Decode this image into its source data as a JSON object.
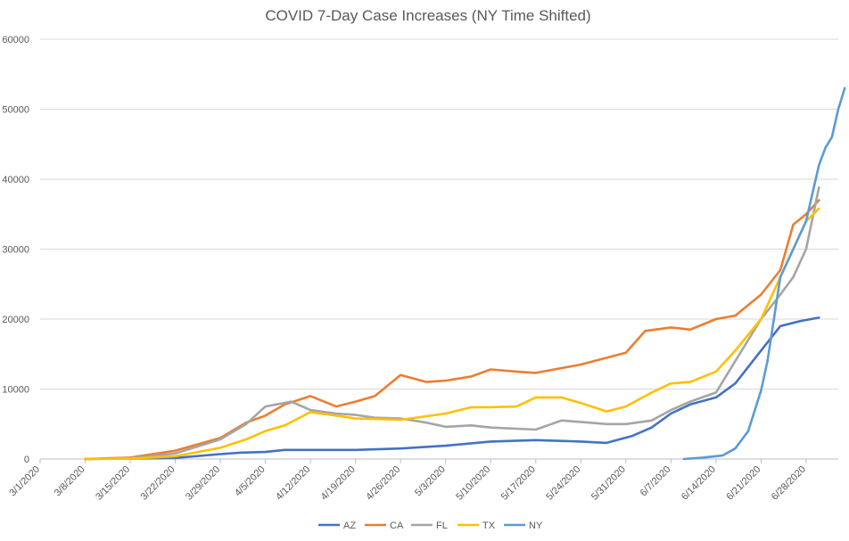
{
  "chart_data": {
    "type": "line",
    "title": "COVID 7-Day Case Increases (NY Time Shifted)",
    "xlabel": "",
    "ylabel": "",
    "ylim": [
      0,
      60000
    ],
    "yticks": [
      0,
      10000,
      20000,
      30000,
      40000,
      50000,
      60000
    ],
    "xlim": [
      "3/1/2020",
      "7/3/2020"
    ],
    "xticks": [
      "3/1/2020",
      "3/8/2020",
      "3/15/2020",
      "3/22/2020",
      "3/29/2020",
      "4/5/2020",
      "4/12/2020",
      "4/19/2020",
      "4/26/2020",
      "5/3/2020",
      "5/10/2020",
      "5/17/2020",
      "5/24/2020",
      "5/31/2020",
      "6/7/2020",
      "6/14/2020",
      "6/21/2020",
      "6/28/2020"
    ],
    "grid": true,
    "legend_position": "bottom",
    "series": [
      {
        "name": "AZ",
        "color": "#4472C4",
        "points": [
          [
            "3/8/2020",
            0
          ],
          [
            "3/15/2020",
            50
          ],
          [
            "3/22/2020",
            150
          ],
          [
            "3/29/2020",
            700
          ],
          [
            "4/1/2020",
            900
          ],
          [
            "4/5/2020",
            1000
          ],
          [
            "4/8/2020",
            1300
          ],
          [
            "4/12/2020",
            1300
          ],
          [
            "4/19/2020",
            1300
          ],
          [
            "4/26/2020",
            1500
          ],
          [
            "5/3/2020",
            1900
          ],
          [
            "5/10/2020",
            2500
          ],
          [
            "5/17/2020",
            2700
          ],
          [
            "5/24/2020",
            2500
          ],
          [
            "5/28/2020",
            2300
          ],
          [
            "6/1/2020",
            3300
          ],
          [
            "6/4/2020",
            4500
          ],
          [
            "6/7/2020",
            6500
          ],
          [
            "6/10/2020",
            7800
          ],
          [
            "6/14/2020",
            8800
          ],
          [
            "6/17/2020",
            10800
          ],
          [
            "6/21/2020",
            15500
          ],
          [
            "6/24/2020",
            19000
          ],
          [
            "6/27/2020",
            19700
          ],
          [
            "6/30/2020",
            20200
          ]
        ]
      },
      {
        "name": "CA",
        "color": "#ED7D31",
        "points": [
          [
            "3/8/2020",
            0
          ],
          [
            "3/15/2020",
            200
          ],
          [
            "3/22/2020",
            1200
          ],
          [
            "3/29/2020",
            3000
          ],
          [
            "4/2/2020",
            5200
          ],
          [
            "4/5/2020",
            6200
          ],
          [
            "4/8/2020",
            7800
          ],
          [
            "4/12/2020",
            9000
          ],
          [
            "4/16/2020",
            7500
          ],
          [
            "4/19/2020",
            8200
          ],
          [
            "4/22/2020",
            9000
          ],
          [
            "4/26/2020",
            12000
          ],
          [
            "4/30/2020",
            11000
          ],
          [
            "5/3/2020",
            11200
          ],
          [
            "5/7/2020",
            11800
          ],
          [
            "5/10/2020",
            12800
          ],
          [
            "5/14/2020",
            12500
          ],
          [
            "5/17/2020",
            12300
          ],
          [
            "5/24/2020",
            13500
          ],
          [
            "5/31/2020",
            15200
          ],
          [
            "6/3/2020",
            18300
          ],
          [
            "6/7/2020",
            18800
          ],
          [
            "6/10/2020",
            18500
          ],
          [
            "6/14/2020",
            20000
          ],
          [
            "6/17/2020",
            20500
          ],
          [
            "6/21/2020",
            23500
          ],
          [
            "6/24/2020",
            27000
          ],
          [
            "6/26/2020",
            33500
          ],
          [
            "6/28/2020",
            35000
          ],
          [
            "6/30/2020",
            37000
          ]
        ]
      },
      {
        "name": "FL",
        "color": "#A5A5A5",
        "points": [
          [
            "3/8/2020",
            0
          ],
          [
            "3/15/2020",
            100
          ],
          [
            "3/22/2020",
            800
          ],
          [
            "3/29/2020",
            2800
          ],
          [
            "4/2/2020",
            5000
          ],
          [
            "4/5/2020",
            7500
          ],
          [
            "4/9/2020",
            8200
          ],
          [
            "4/12/2020",
            7000
          ],
          [
            "4/16/2020",
            6500
          ],
          [
            "4/19/2020",
            6300
          ],
          [
            "4/22/2020",
            5900
          ],
          [
            "4/26/2020",
            5800
          ],
          [
            "4/30/2020",
            5200
          ],
          [
            "5/3/2020",
            4600
          ],
          [
            "5/7/2020",
            4800
          ],
          [
            "5/10/2020",
            4500
          ],
          [
            "5/17/2020",
            4200
          ],
          [
            "5/21/2020",
            5500
          ],
          [
            "5/24/2020",
            5300
          ],
          [
            "5/28/2020",
            5000
          ],
          [
            "5/31/2020",
            5000
          ],
          [
            "6/4/2020",
            5500
          ],
          [
            "6/7/2020",
            7000
          ],
          [
            "6/10/2020",
            8200
          ],
          [
            "6/14/2020",
            9500
          ],
          [
            "6/17/2020",
            14000
          ],
          [
            "6/21/2020",
            20000
          ],
          [
            "6/24/2020",
            23500
          ],
          [
            "6/26/2020",
            26000
          ],
          [
            "6/28/2020",
            30000
          ],
          [
            "6/30/2020",
            38800
          ]
        ]
      },
      {
        "name": "TX",
        "color": "#FFC000",
        "points": [
          [
            "3/8/2020",
            0
          ],
          [
            "3/15/2020",
            50
          ],
          [
            "3/22/2020",
            400
          ],
          [
            "3/29/2020",
            1600
          ],
          [
            "4/2/2020",
            2800
          ],
          [
            "4/5/2020",
            4000
          ],
          [
            "4/8/2020",
            4800
          ],
          [
            "4/12/2020",
            6700
          ],
          [
            "4/16/2020",
            6200
          ],
          [
            "4/19/2020",
            5800
          ],
          [
            "4/26/2020",
            5600
          ],
          [
            "5/3/2020",
            6500
          ],
          [
            "5/7/2020",
            7400
          ],
          [
            "5/10/2020",
            7400
          ],
          [
            "5/14/2020",
            7500
          ],
          [
            "5/17/2020",
            8800
          ],
          [
            "5/21/2020",
            8800
          ],
          [
            "5/24/2020",
            8000
          ],
          [
            "5/28/2020",
            6800
          ],
          [
            "5/31/2020",
            7500
          ],
          [
            "6/4/2020",
            9500
          ],
          [
            "6/7/2020",
            10800
          ],
          [
            "6/10/2020",
            11000
          ],
          [
            "6/14/2020",
            12500
          ],
          [
            "6/17/2020",
            15500
          ],
          [
            "6/21/2020",
            20000
          ],
          [
            "6/24/2020",
            26000
          ],
          [
            "6/26/2020",
            30000
          ],
          [
            "6/28/2020",
            34000
          ],
          [
            "6/30/2020",
            35800
          ]
        ]
      },
      {
        "name": "NY",
        "color": "#5B9BD5",
        "points": [
          [
            "6/9/2020",
            0
          ],
          [
            "6/12/2020",
            200
          ],
          [
            "6/15/2020",
            500
          ],
          [
            "6/17/2020",
            1500
          ],
          [
            "6/19/2020",
            4000
          ],
          [
            "6/21/2020",
            9800
          ],
          [
            "6/22/2020",
            14000
          ],
          [
            "6/23/2020",
            20000
          ],
          [
            "6/24/2020",
            26000
          ],
          [
            "6/26/2020",
            30000
          ],
          [
            "6/28/2020",
            34000
          ],
          [
            "6/30/2020",
            42000
          ],
          [
            "7/1/2020",
            44500
          ],
          [
            "7/2/2020",
            46000
          ],
          [
            "7/3/2020",
            50000
          ],
          [
            "7/4/2020",
            53000
          ]
        ]
      }
    ]
  }
}
